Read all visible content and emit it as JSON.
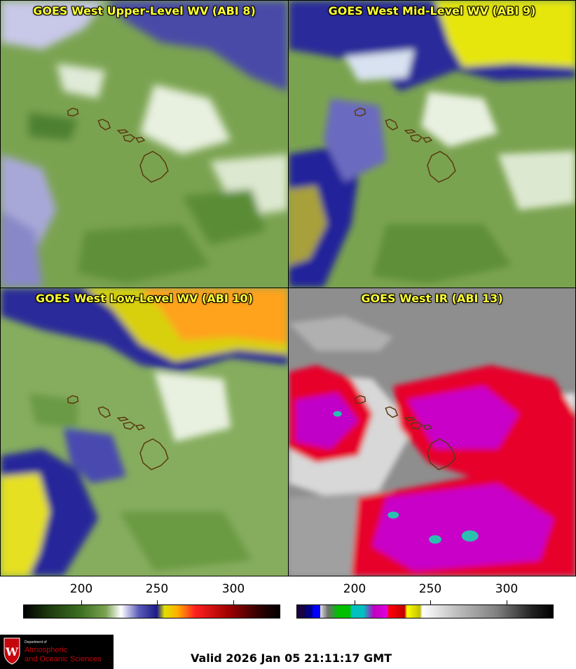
{
  "panels": [
    {
      "id": "upper",
      "title": "GOES West Upper-Level WV (ABI 8)"
    },
    {
      "id": "mid",
      "title": "GOES West Mid-Level WV (ABI 9)"
    },
    {
      "id": "low",
      "title": "GOES West Low-Level WV (ABI 10)"
    },
    {
      "id": "ir",
      "title": "GOES West IR (ABI 13)"
    }
  ],
  "colorbars": [
    {
      "id": "wv",
      "ticks": [
        "200",
        "250",
        "300"
      ],
      "tick_values": [
        200,
        250,
        300
      ],
      "range": [
        163,
        333
      ]
    },
    {
      "id": "ir",
      "ticks": [
        "200",
        "250",
        "300"
      ],
      "tick_values": [
        200,
        250,
        300
      ],
      "range": [
        163,
        333
      ]
    }
  ],
  "logo": {
    "dept": "Department of",
    "line1": "Atmospheric",
    "line2": "and Oceanic Sciences"
  },
  "valid_text": "Valid 2026 Jan 05 21:11:17 GMT",
  "colors": {
    "title": "#ffff33",
    "island_outline": "#5a3a10"
  }
}
